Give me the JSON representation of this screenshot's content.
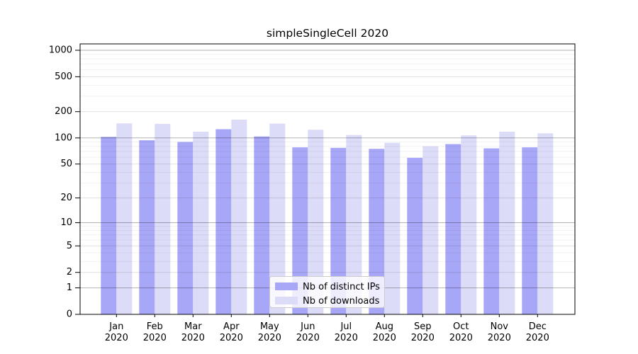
{
  "chart_data": {
    "type": "bar",
    "title": "simpleSingleCell 2020",
    "categories": [
      "Jan 2020",
      "Feb 2020",
      "Mar 2020",
      "Apr 2020",
      "May 2020",
      "Jun 2020",
      "Jul 2020",
      "Aug 2020",
      "Sep 2020",
      "Oct 2020",
      "Nov 2020",
      "Dec 2020"
    ],
    "series": [
      {
        "name": "Nb of distinct IPs",
        "color": "#a8a7f7",
        "values": [
          103,
          94,
          90,
          126,
          104,
          78,
          77,
          75,
          59,
          85,
          76,
          78
        ]
      },
      {
        "name": "Nb of downloads",
        "color": "#dcdcf8",
        "values": [
          147,
          145,
          118,
          162,
          146,
          124,
          108,
          88,
          80,
          107,
          118,
          113
        ]
      }
    ],
    "xlabel": "",
    "ylabel": "",
    "yscale": "log1p",
    "yticks": [
      0,
      1,
      2,
      5,
      10,
      20,
      50,
      100,
      200,
      500,
      1000
    ],
    "ylim": [
      0,
      1180
    ],
    "grid": true,
    "legend_position": "inside-bottom-center"
  },
  "legend": {
    "items": [
      {
        "label": "Nb of distinct IPs",
        "color": "#a8a7f7"
      },
      {
        "label": "Nb of downloads",
        "color": "#dcdcf8"
      }
    ]
  },
  "style": {
    "plot_border_color": "#000000",
    "grid_major_color": "rgba(0,0,0,0.30)",
    "grid_mid_color": "rgba(0,0,0,0.12)",
    "grid_minor_color": "rgba(0,0,0,0.055)",
    "legend_border_color": "#cccccc",
    "legend_bg_color": "rgba(255,255,255,0.8)",
    "text_color": "#000000"
  }
}
